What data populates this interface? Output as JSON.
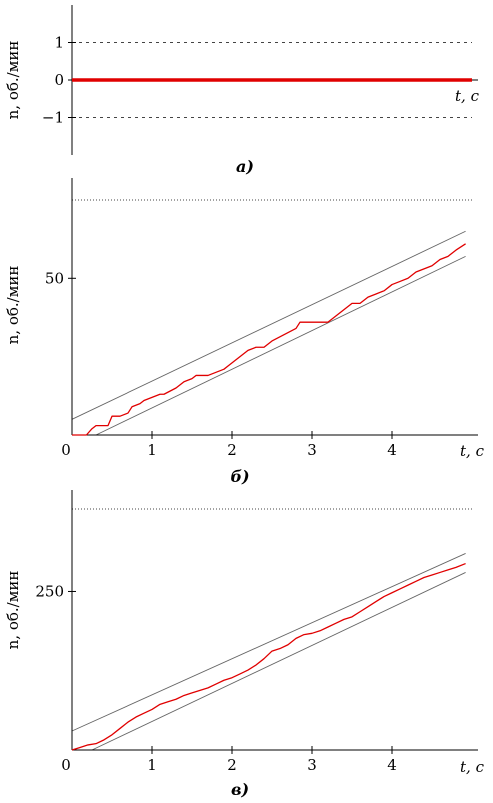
{
  "chart_data": [
    {
      "type": "line",
      "caption": "а)",
      "ylabel": "n, об./мин",
      "xlabel": "t, c",
      "xlim": [
        0,
        5
      ],
      "ylim": [
        -2,
        2
      ],
      "yticks": [
        {
          "value": 1,
          "label": "1"
        },
        {
          "value": 0,
          "label": "0"
        },
        {
          "value": -1,
          "label": "−1"
        }
      ],
      "hlines": [
        1,
        -1
      ],
      "series": [
        {
          "color": "#e00000",
          "x": [
            0,
            5
          ],
          "y": [
            0,
            0
          ]
        }
      ]
    },
    {
      "type": "line",
      "caption": "б)",
      "ylabel": "n, об./мин",
      "xlabel": "t, c",
      "xlim": [
        0,
        5
      ],
      "ylim": [
        0,
        82
      ],
      "xticks": [
        {
          "value": 0,
          "label": "0"
        },
        {
          "value": 1,
          "label": "1"
        },
        {
          "value": 2,
          "label": "2"
        },
        {
          "value": 3,
          "label": "3"
        },
        {
          "value": 4,
          "label": "4"
        }
      ],
      "yticks": [
        {
          "value": 50,
          "label": "50"
        }
      ],
      "hlines": [
        75
      ],
      "bounds": [
        {
          "x": [
            0,
            4.92
          ],
          "y": [
            5,
            65
          ]
        },
        {
          "x": [
            0.3,
            4.92
          ],
          "y": [
            0,
            57
          ]
        }
      ],
      "series": [
        {
          "color": "#e00000",
          "x": [
            0,
            0.18,
            0.25,
            0.3,
            0.45,
            0.5,
            0.6,
            0.7,
            0.75,
            0.85,
            0.9,
            1.0,
            1.1,
            1.15,
            1.3,
            1.4,
            1.5,
            1.55,
            1.7,
            1.8,
            1.9,
            1.95,
            2.0,
            2.1,
            2.2,
            2.3,
            2.4,
            2.5,
            2.65,
            2.8,
            2.85,
            3.0,
            3.1,
            3.2,
            3.3,
            3.4,
            3.5,
            3.6,
            3.7,
            3.8,
            3.9,
            4.0,
            4.1,
            4.2,
            4.3,
            4.4,
            4.5,
            4.6,
            4.7,
            4.8,
            4.92
          ],
          "y": [
            0,
            0,
            2,
            3,
            3,
            6,
            6,
            7,
            9,
            10,
            11,
            12,
            13,
            13,
            15,
            17,
            18,
            19,
            19,
            20,
            21,
            22,
            23,
            25,
            27,
            28,
            28,
            30,
            32,
            34,
            36,
            36,
            36,
            36,
            38,
            40,
            42,
            42,
            44,
            45,
            46,
            48,
            49,
            50,
            52,
            53,
            54,
            56,
            57,
            59,
            61
          ]
        }
      ]
    },
    {
      "type": "line",
      "caption": "в)",
      "ylabel": "n, об./мин",
      "xlabel": "t, c",
      "xlim": [
        0,
        5
      ],
      "ylim": [
        0,
        410
      ],
      "xticks": [
        {
          "value": 0,
          "label": "0"
        },
        {
          "value": 1,
          "label": "1"
        },
        {
          "value": 2,
          "label": "2"
        },
        {
          "value": 3,
          "label": "3"
        },
        {
          "value": 4,
          "label": "4"
        }
      ],
      "yticks": [
        {
          "value": 250,
          "label": "250"
        }
      ],
      "hlines": [
        380
      ],
      "bounds": [
        {
          "x": [
            0,
            4.92
          ],
          "y": [
            30,
            310
          ]
        },
        {
          "x": [
            0.25,
            4.92
          ],
          "y": [
            0,
            280
          ]
        }
      ],
      "series": [
        {
          "color": "#e00000",
          "x": [
            0,
            0.1,
            0.2,
            0.3,
            0.4,
            0.5,
            0.6,
            0.7,
            0.8,
            0.9,
            1.0,
            1.1,
            1.2,
            1.3,
            1.4,
            1.5,
            1.6,
            1.7,
            1.8,
            1.9,
            2.0,
            2.1,
            2.2,
            2.3,
            2.4,
            2.5,
            2.6,
            2.7,
            2.8,
            2.9,
            3.0,
            3.1,
            3.2,
            3.3,
            3.4,
            3.5,
            3.6,
            3.7,
            3.8,
            3.9,
            4.0,
            4.1,
            4.2,
            4.3,
            4.4,
            4.5,
            4.6,
            4.7,
            4.8,
            4.92
          ],
          "y": [
            0,
            4,
            8,
            10,
            16,
            24,
            34,
            44,
            52,
            58,
            64,
            72,
            76,
            80,
            86,
            90,
            94,
            98,
            104,
            110,
            114,
            120,
            126,
            134,
            144,
            156,
            160,
            166,
            176,
            182,
            184,
            188,
            194,
            200,
            206,
            210,
            218,
            226,
            234,
            242,
            248,
            254,
            260,
            266,
            272,
            276,
            280,
            284,
            288,
            294
          ]
        }
      ]
    }
  ]
}
